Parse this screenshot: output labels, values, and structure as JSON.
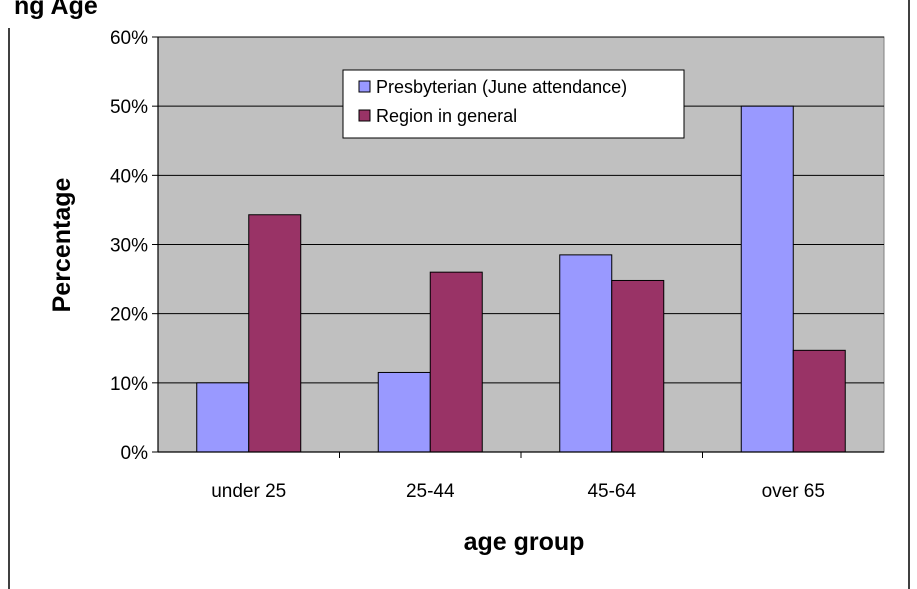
{
  "chart_data": {
    "type": "bar",
    "title": "ng Age",
    "xlabel": "age group",
    "ylabel": "Percentage",
    "categories": [
      "under 25",
      "25-44",
      "45-64",
      "over 65"
    ],
    "series": [
      {
        "name": "Presbyterian (June attendance)",
        "values": [
          10,
          11.5,
          28.5,
          50
        ],
        "color": "#9999ff"
      },
      {
        "name": "Region in general",
        "values": [
          34.3,
          26,
          24.8,
          14.7
        ],
        "color": "#993366"
      }
    ],
    "ylim": [
      0,
      60
    ],
    "yticks": [
      "0%",
      "10%",
      "20%",
      "30%",
      "40%",
      "50%",
      "60%"
    ],
    "grid": true,
    "plot_background": "#c0c0c0",
    "legend_position": "top-center"
  }
}
